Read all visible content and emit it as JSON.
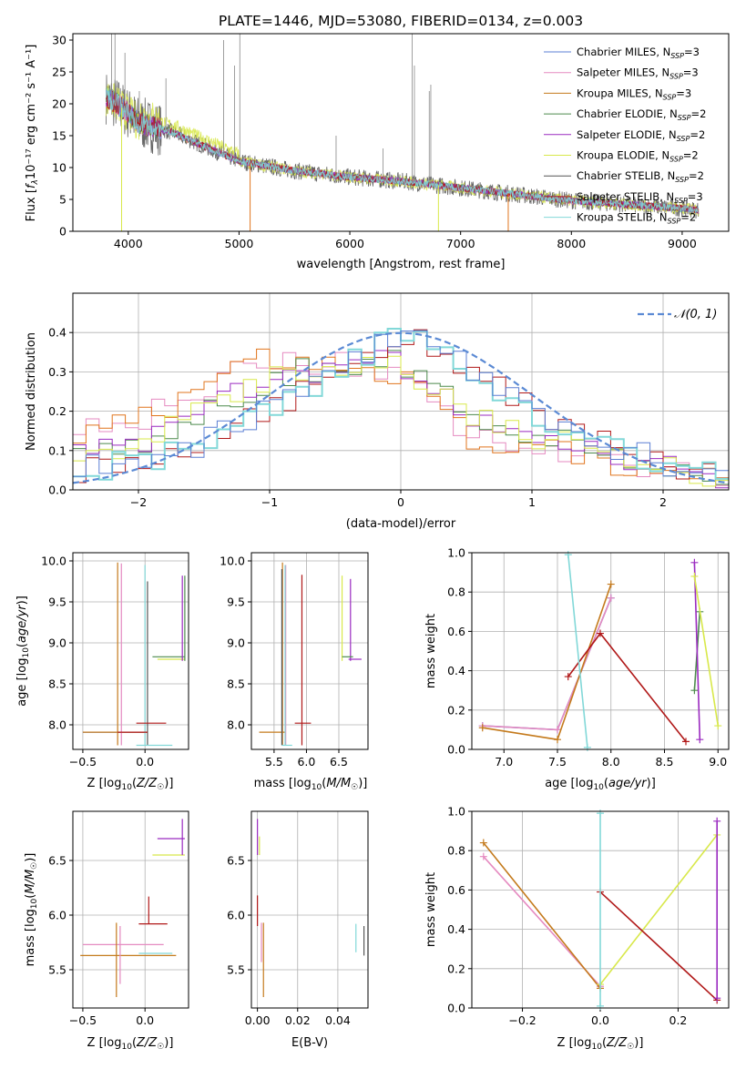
{
  "title": "PLATE=1446, MJD=53080, FIBERID=0134, z=0.003",
  "colors": {
    "Chabrier MILES": "#5b7fd4",
    "Salpeter MILES": "#e58ac0",
    "Kroupa MILES": "#c47a1c",
    "Chabrier ELODIE": "#4c8a4c",
    "Salpeter ELODIE": "#9a2ac0",
    "Kroupa ELODIE": "#d8e84a",
    "Chabrier STELIB": "#555555",
    "Salpeter STELIB": "#b01818",
    "Kroupa STELIB": "#82d8d8",
    "normal": "#5b8ad4",
    "orange": "#e0741c"
  },
  "spectrum": {
    "xlabel": "wavelength [Angstrom, rest frame]",
    "ylabel_pre": "Flux [",
    "ylabel_post": "10⁻¹⁷ erg cm⁻² s⁻¹ A⁻¹]",
    "legend": [
      {
        "text": "Chabrier MILES, N",
        "sub": "SSP",
        "n": "=3"
      },
      {
        "text": "Salpeter MILES, N",
        "sub": "SSP",
        "n": "=3"
      },
      {
        "text": "Kroupa MILES, N",
        "sub": "SSP",
        "n": "=3"
      },
      {
        "text": "Chabrier ELODIE, N",
        "sub": "SSP",
        "n": "=2"
      },
      {
        "text": "Salpeter ELODIE, N",
        "sub": "SSP",
        "n": "=2"
      },
      {
        "text": "Kroupa ELODIE, N",
        "sub": "SSP",
        "n": "=2"
      },
      {
        "text": "Chabrier STELIB, N",
        "sub": "SSP",
        "n": "=2"
      },
      {
        "text": "Salpeter STELIB, N",
        "sub": "SSP",
        "n": "=3"
      },
      {
        "text": "Kroupa STELIB, N",
        "sub": "SSP",
        "n": "=2"
      }
    ]
  },
  "residuals": {
    "xlabel": "(data-model)/error",
    "ylabel": "Normed distribution",
    "legend": "𝒩(0, 1)"
  },
  "chart_data": [
    {
      "type": "line",
      "title": "PLATE=1446, MJD=53080, FIBERID=0134, z=0.003",
      "xlabel": "wavelength [Angstrom, rest frame]",
      "xlim": [
        3500,
        9420
      ],
      "ylim": [
        0,
        31
      ],
      "xticks": [
        4000,
        5000,
        6000,
        7000,
        8000,
        9000
      ],
      "yticks": [
        0,
        5,
        10,
        15,
        20,
        25,
        30
      ],
      "data_envelope": {
        "x": [
          3800,
          3900,
          4000,
          4100,
          4200,
          4400,
          4600,
          4800,
          5000,
          5500,
          6000,
          6500,
          7000,
          7500,
          8000,
          8500,
          9000,
          9150
        ],
        "y": [
          21,
          20,
          18.5,
          17,
          16.5,
          15.5,
          14,
          12.5,
          11,
          9.5,
          8.5,
          7.8,
          6.8,
          5.8,
          4.8,
          4.2,
          3.6,
          3.3
        ]
      },
      "series": [
        {
          "name": "Chabrier MILES, NSSP=3"
        },
        {
          "name": "Salpeter MILES, NSSP=3"
        },
        {
          "name": "Kroupa MILES, NSSP=3"
        },
        {
          "name": "Chabrier ELODIE, NSSP=2"
        },
        {
          "name": "Salpeter ELODIE, NSSP=2"
        },
        {
          "name": "Kroupa ELODIE, NSSP=2"
        },
        {
          "name": "Chabrier STELIB, NSSP=2"
        },
        {
          "name": "Salpeter STELIB, NSSP=3"
        },
        {
          "name": "Kroupa STELIB, NSSP=2"
        }
      ]
    },
    {
      "type": "line",
      "xlabel": "(data-model)/error",
      "ylabel": "Normed distribution",
      "xlim": [
        -2.5,
        2.5
      ],
      "ylim": [
        0,
        0.5
      ],
      "xticks": [
        -2,
        -1,
        0,
        1,
        2
      ],
      "yticks": [
        0.0,
        0.1,
        0.2,
        0.3,
        0.4
      ],
      "grid": true,
      "legend": "top-right",
      "x": [
        -2.5,
        -2.0,
        -1.5,
        -1.0,
        -0.5,
        0.0,
        0.5,
        1.0,
        1.5,
        2.0,
        2.5
      ],
      "series": [
        {
          "key": "steep",
          "values": [
            0.15,
            0.17,
            0.26,
            0.34,
            0.32,
            0.3,
            0.14,
            0.1,
            0.08,
            0.05,
            0.03
          ]
        },
        {
          "key": "mid",
          "values": [
            0.1,
            0.11,
            0.2,
            0.28,
            0.32,
            0.33,
            0.2,
            0.14,
            0.1,
            0.06,
            0.03
          ]
        },
        {
          "key": "narrow",
          "values": [
            0.05,
            0.07,
            0.12,
            0.2,
            0.3,
            0.4,
            0.32,
            0.2,
            0.12,
            0.07,
            0.03
          ]
        },
        {
          "name": "𝒩(0, 1)",
          "values": [
            0.018,
            0.054,
            0.13,
            0.242,
            0.352,
            0.399,
            0.352,
            0.242,
            0.13,
            0.054,
            0.018
          ]
        }
      ]
    },
    {
      "type": "scatter",
      "xlabel": "Z [log10(Z/Z☉)]",
      "ylabel": "age [log10(age/yr)]",
      "xlim": [
        -0.58,
        0.35
      ],
      "ylim": [
        7.7,
        10.1
      ],
      "xticks": [
        -0.5,
        0.0
      ],
      "yticks": [
        8.0,
        8.5,
        9.0,
        9.5,
        10.0
      ]
    },
    {
      "type": "scatter",
      "xlabel": "mass [log10(M/M☉)]",
      "xlim": [
        5.15,
        6.95
      ],
      "ylim": [
        7.7,
        10.1
      ],
      "xticks": [
        5.5,
        6.0,
        6.5
      ],
      "yticks": [
        8.0,
        8.5,
        9.0,
        9.5,
        10.0
      ]
    },
    {
      "type": "line",
      "xlabel": "age [log10(age/yr)]",
      "ylabel": "mass weight",
      "xlim": [
        6.7,
        9.1
      ],
      "ylim": [
        0,
        1
      ],
      "xticks": [
        7.0,
        7.5,
        8.0,
        8.5,
        9.0
      ],
      "yticks": [
        0.0,
        0.2,
        0.4,
        0.6,
        0.8,
        1.0
      ],
      "series": [
        {
          "key": "Chabrier MILES",
          "x": [
            6.8,
            7.5,
            8.0
          ],
          "y": [
            0.12,
            0.1,
            0.77
          ]
        },
        {
          "key": "Salpeter MILES",
          "x": [
            6.8,
            7.5,
            8.0
          ],
          "y": [
            0.12,
            0.1,
            0.77
          ]
        },
        {
          "key": "Kroupa MILES",
          "x": [
            6.8,
            7.5,
            8.0
          ],
          "y": [
            0.11,
            0.05,
            0.84
          ]
        },
        {
          "key": "Chabrier ELODIE",
          "x": [
            8.78,
            8.83
          ],
          "y": [
            0.3,
            0.7
          ]
        },
        {
          "key": "Salpeter ELODIE",
          "x": [
            8.78,
            8.83
          ],
          "y": [
            0.95,
            0.05
          ]
        },
        {
          "key": "Kroupa ELODIE",
          "x": [
            8.78,
            9.0
          ],
          "y": [
            0.88,
            0.12
          ]
        },
        {
          "key": "Salpeter STELIB",
          "x": [
            7.6,
            7.9,
            8.7
          ],
          "y": [
            0.37,
            0.59,
            0.04
          ]
        },
        {
          "key": "Kroupa STELIB",
          "x": [
            7.6,
            7.78
          ],
          "y": [
            0.99,
            0.01
          ]
        }
      ]
    },
    {
      "type": "scatter",
      "xlabel": "Z [log10(Z/Z☉)]",
      "ylabel": "mass [log10(M/M☉)]",
      "xlim": [
        -0.58,
        0.35
      ],
      "ylim": [
        5.15,
        6.95
      ],
      "xticks": [
        -0.5,
        0.0
      ],
      "yticks": [
        5.5,
        6.0,
        6.5
      ]
    },
    {
      "type": "scatter",
      "xlabel": "E(B-V)",
      "xlim": [
        -0.003,
        0.055
      ],
      "ylim": [
        5.15,
        6.95
      ],
      "xticks": [
        0.0,
        0.02,
        0.04
      ],
      "yticks": [
        5.5,
        6.0,
        6.5
      ]
    },
    {
      "type": "line",
      "xlabel": "Z [log10(Z/Z☉)]",
      "ylabel": "mass weight",
      "xlim": [
        -0.33,
        0.33
      ],
      "ylim": [
        0,
        1
      ],
      "xticks": [
        -0.2,
        0.0,
        0.2
      ],
      "yticks": [
        0.0,
        0.2,
        0.4,
        0.6,
        0.8,
        1.0
      ],
      "series": [
        {
          "key": "Salpeter MILES",
          "x": [
            -0.3,
            0.0
          ],
          "y": [
            0.77,
            0.11
          ]
        },
        {
          "key": "Kroupa MILES",
          "x": [
            -0.3,
            0.0
          ],
          "y": [
            0.84,
            0.1
          ]
        },
        {
          "key": "Kroupa ELODIE",
          "x": [
            0.0,
            0.3
          ],
          "y": [
            0.12,
            0.88
          ]
        },
        {
          "key": "Salpeter STELIB",
          "x": [
            0.0,
            0.3
          ],
          "y": [
            0.59,
            0.04
          ]
        },
        {
          "key": "Salpeter ELODIE",
          "x": [
            0.3,
            0.3
          ],
          "y": [
            0.05,
            0.95
          ]
        },
        {
          "key": "Kroupa STELIB",
          "x": [
            0.0,
            0.0
          ],
          "y": [
            0.01,
            0.99
          ]
        }
      ]
    }
  ]
}
